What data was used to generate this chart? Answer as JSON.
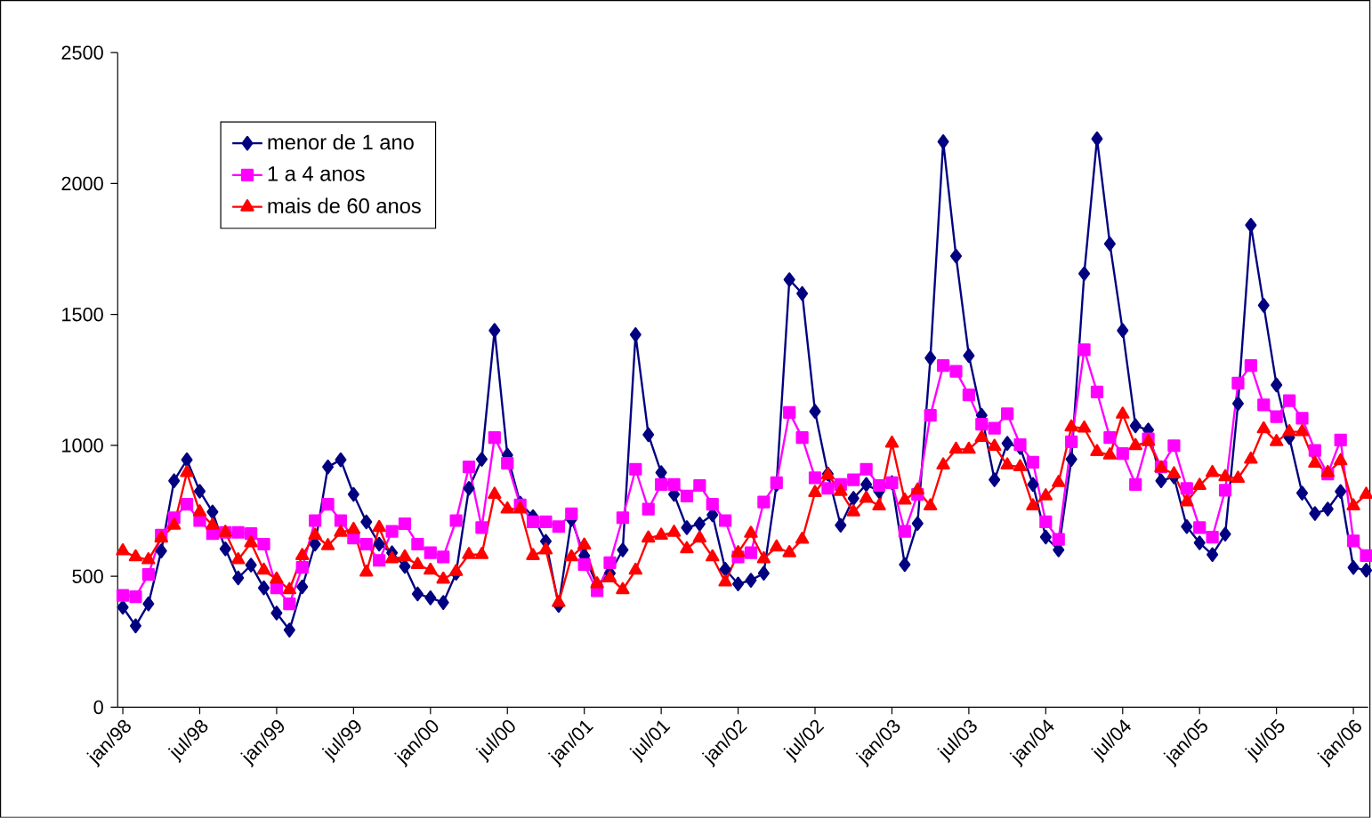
{
  "chart_data": {
    "type": "line",
    "categories": [
      "jan/98",
      null,
      null,
      null,
      null,
      null,
      "jul/98",
      null,
      null,
      null,
      null,
      null,
      "jan/99",
      null,
      null,
      null,
      null,
      null,
      "jul/99",
      null,
      null,
      null,
      null,
      null,
      "jan/00",
      null,
      null,
      null,
      null,
      null,
      "jul/00",
      null,
      null,
      null,
      null,
      null,
      "jan/01",
      null,
      null,
      null,
      null,
      null,
      "jul/01",
      null,
      null,
      null,
      null,
      null,
      "jan/02",
      null,
      null,
      null,
      null,
      null,
      "jul/02",
      null,
      null,
      null,
      null,
      null,
      "jan/03",
      null,
      null,
      null,
      null,
      null,
      "jul/03",
      null,
      null,
      null,
      null,
      null,
      "jan/04",
      null,
      null,
      null,
      null,
      null,
      "jul/04",
      null,
      null,
      null,
      null,
      null,
      "jan/05",
      null,
      null,
      null,
      null,
      null,
      "jul/05",
      null,
      null,
      null,
      null,
      null,
      "jan/06",
      null
    ],
    "series": [
      {
        "name": "menor de 1 ano",
        "color": "#000080",
        "marker": "diamond",
        "values": [
          382,
          311,
          395,
          597,
          865,
          945,
          825,
          746,
          605,
          494,
          543,
          456,
          360,
          295,
          460,
          623,
          918,
          945,
          813,
          708,
          623,
          590,
          538,
          433,
          418,
          400,
          512,
          836,
          947,
          1439,
          963,
          780,
          728,
          634,
          389,
          717,
          579,
          467,
          512,
          601,
          1423,
          1041,
          896,
          813,
          686,
          700,
          735,
          527,
          471,
          485,
          512,
          851,
          1633,
          1580,
          1130,
          891,
          695,
          798,
          851,
          824,
          858,
          545,
          702,
          1334,
          2160,
          1723,
          1343,
          1115,
          869,
          1008,
          992,
          851,
          650,
          601,
          947,
          1656,
          2171,
          1770,
          1439,
          1075,
          1059,
          865,
          880,
          690,
          628,
          583,
          661,
          1160,
          1841,
          1535,
          1231,
          1030,
          818,
          740,
          757,
          824,
          534,
          523
        ]
      },
      {
        "name": "1 a 4 anos",
        "color": "#ff00ff",
        "marker": "square",
        "values": [
          427,
          422,
          507,
          657,
          724,
          775,
          713,
          663,
          668,
          668,
          663,
          623,
          456,
          395,
          534,
          713,
          775,
          713,
          646,
          623,
          561,
          672,
          701,
          623,
          590,
          574,
          713,
          918,
          686,
          1030,
          932,
          773,
          708,
          708,
          690,
          739,
          545,
          445,
          552,
          724,
          909,
          757,
          851,
          851,
          807,
          847,
          775,
          713,
          574,
          590,
          784,
          858,
          1126,
          1030,
          876,
          836,
          851,
          869,
          909,
          847,
          858,
          672,
          813,
          1115,
          1305,
          1283,
          1193,
          1081,
          1066,
          1121,
          1003,
          936,
          708,
          641,
          1014,
          1365,
          1204,
          1030,
          969,
          851,
          1025,
          918,
          999,
          836,
          686,
          650,
          829,
          1238,
          1305,
          1155,
          1110,
          1171,
          1104,
          981,
          891,
          1021,
          635,
          579
        ]
      },
      {
        "name": "mais de 60 anos",
        "color": "#ff0000",
        "marker": "triangle",
        "values": [
          597,
          574,
          563,
          646,
          695,
          896,
          746,
          695,
          668,
          563,
          628,
          523,
          489,
          449,
          579,
          657,
          617,
          668,
          679,
          516,
          686,
          567,
          574,
          545,
          523,
          489,
          518,
          583,
          583,
          813,
          757,
          757,
          579,
          601,
          400,
          574,
          619,
          471,
          494,
          449,
          523,
          646,
          657,
          668,
          605,
          646,
          574,
          478,
          590,
          664,
          567,
          612,
          590,
          641,
          820,
          887,
          824,
          746,
          798,
          769,
          1008,
          791,
          829,
          769,
          925,
          985,
          985,
          1030,
          996,
          925,
          918,
          769,
          807,
          858,
          1070,
          1066,
          976,
          963,
          1119,
          999,
          1014,
          914,
          891,
          784,
          847,
          896,
          880,
          874,
          947,
          1063,
          1014,
          1052,
          1052,
          932,
          896,
          941,
          769,
          813
        ]
      }
    ],
    "ylim": [
      0,
      2500
    ],
    "yticks": [
      0,
      500,
      1000,
      1500,
      2000,
      2500
    ],
    "legend": "top left",
    "line_style": "solid"
  }
}
